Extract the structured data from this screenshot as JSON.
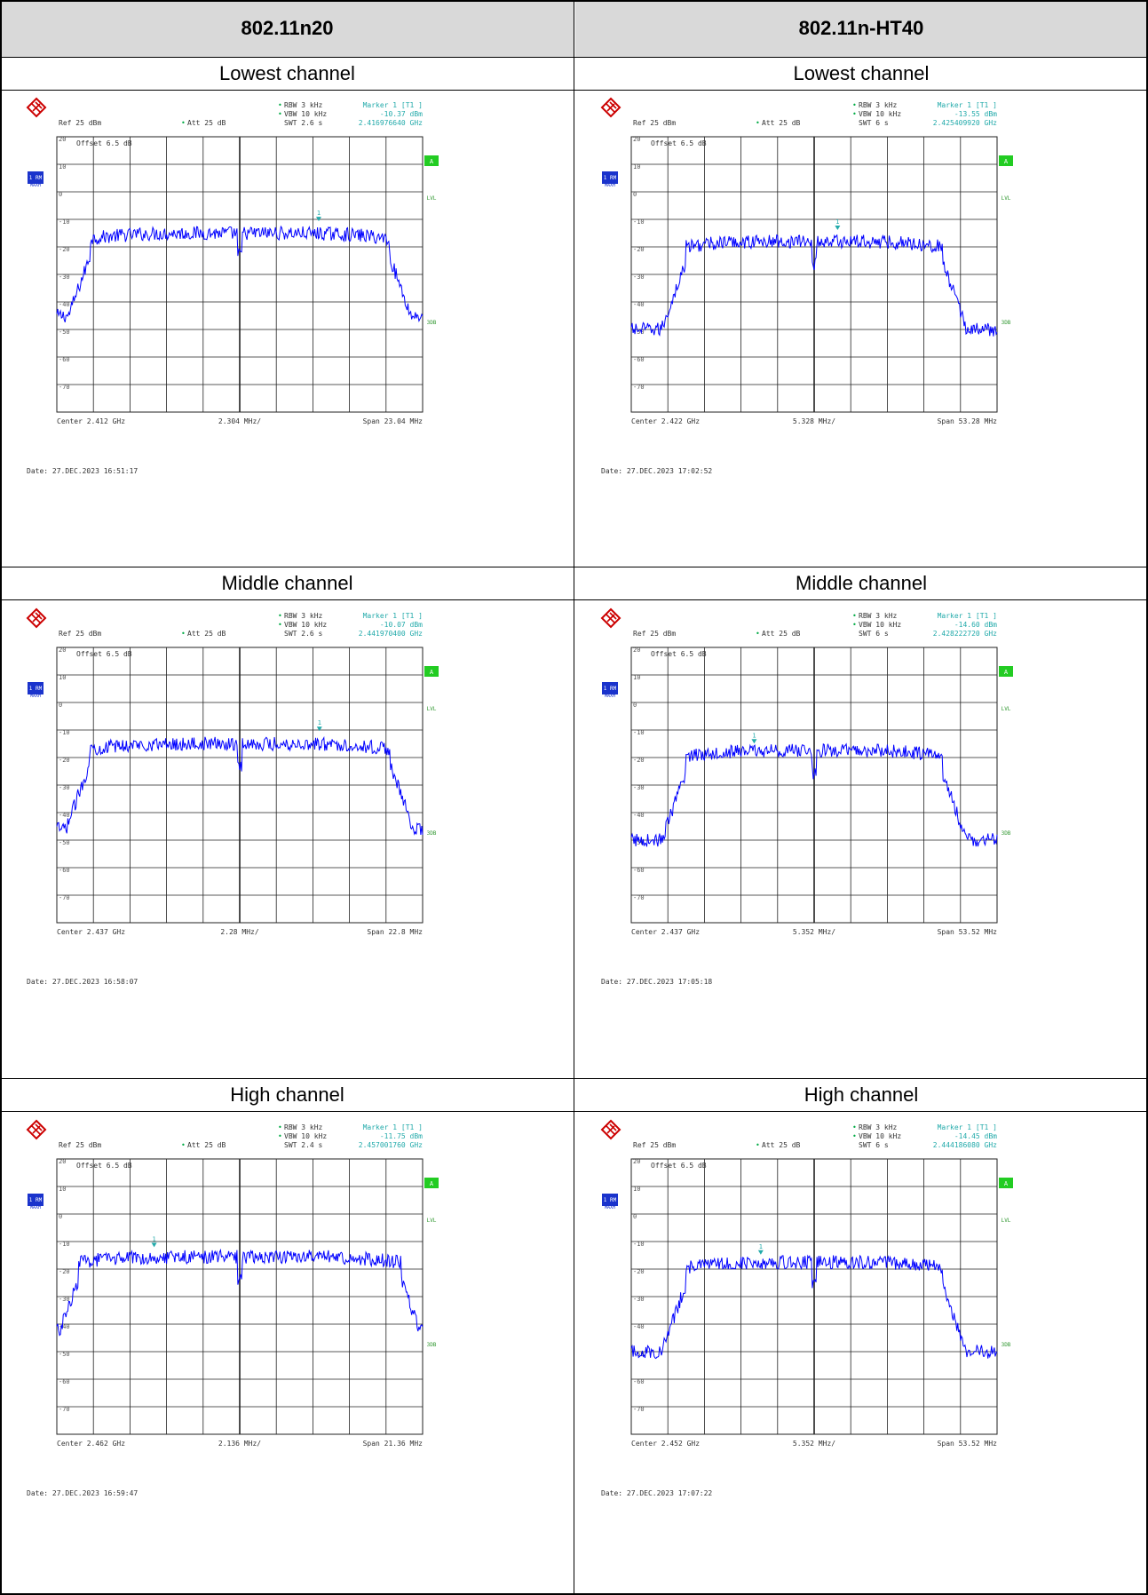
{
  "columns": [
    {
      "title": "802.11n20"
    },
    {
      "title": "802.11n-HT40"
    }
  ],
  "rows": [
    {
      "label": "Lowest channel"
    },
    {
      "label": "Middle channel"
    },
    {
      "label": "High channel"
    }
  ],
  "common": {
    "rbw": "RBW 3 kHz",
    "vbw": "VBW 10 kHz",
    "ref": "Ref  25 dBm",
    "att": "Att  25 dB",
    "offset": "Offset  6.5 dB",
    "side_1": "1 RM",
    "side_1b": "MAXH",
    "side_a": "A",
    "side_lvl": "LVL",
    "side_3db": "3DB",
    "marker_title": "Marker 1 [T1 ]",
    "y_ticks": [
      "20",
      "10",
      "0",
      "-10",
      "-20",
      "-30",
      "-40",
      "-50",
      "-60",
      "-70"
    ]
  },
  "chart_data": [
    {
      "type": "line",
      "panel": "802.11n20 Lowest channel",
      "swt": "SWT 2.6 s",
      "marker_level": "-10.37 dBm",
      "marker_freq": "2.416976640 GHz",
      "center": "Center  2.412 GHz",
      "per_div": "2.304 MHz/",
      "span": "Span  23.04 MHz",
      "date": "Date: 27.DEC.2023  16:51:17",
      "center_mhz": 2412,
      "span_mhz": 23.04,
      "occupied_mhz": 18.8,
      "plateau_dbm": -15,
      "floor_dbm": -45,
      "marker_x_mhz": 2416.97664,
      "marker_y_dbm": -10.37,
      "ylim": [
        -80,
        20
      ],
      "color": "#0000ff"
    },
    {
      "type": "line",
      "panel": "802.11n-HT40 Lowest channel",
      "swt": "SWT 6 s",
      "marker_level": "-13.55 dBm",
      "marker_freq": "2.425409920 GHz",
      "center": "Center  2.422 GHz",
      "per_div": "5.328 MHz/",
      "span": "Span  53.28 MHz",
      "date": "Date: 27.DEC.2023  17:02:52",
      "center_mhz": 2422,
      "span_mhz": 53.28,
      "occupied_mhz": 37.5,
      "plateau_dbm": -18,
      "floor_dbm": -50,
      "marker_x_mhz": 2425.40992,
      "marker_y_dbm": -13.55,
      "ylim": [
        -80,
        20
      ],
      "color": "#0000ff"
    },
    {
      "type": "line",
      "panel": "802.11n20 Middle channel",
      "swt": "SWT 2.6 s",
      "marker_level": "-10.07 dBm",
      "marker_freq": "2.441970400 GHz",
      "center": "Center  2.437 GHz",
      "per_div": "2.28 MHz/",
      "span": "Span  22.8 MHz",
      "date": "Date: 27.DEC.2023  16:58:07",
      "center_mhz": 2437,
      "span_mhz": 22.8,
      "occupied_mhz": 18.8,
      "plateau_dbm": -15,
      "floor_dbm": -46,
      "marker_x_mhz": 2441.9704,
      "marker_y_dbm": -10.07,
      "ylim": [
        -80,
        20
      ],
      "color": "#0000ff"
    },
    {
      "type": "line",
      "panel": "802.11n-HT40 Middle channel",
      "swt": "SWT 6 s",
      "marker_level": "-14.60 dBm",
      "marker_freq": "2.428222720 GHz",
      "center": "Center  2.437 GHz",
      "per_div": "5.352 MHz/",
      "span": "Span  53.52 MHz",
      "date": "Date: 27.DEC.2023  17:05:18",
      "center_mhz": 2437,
      "span_mhz": 53.52,
      "occupied_mhz": 37.5,
      "plateau_dbm": -17.5,
      "floor_dbm": -50,
      "marker_x_mhz": 2428.22272,
      "marker_y_dbm": -14.6,
      "ylim": [
        -80,
        20
      ],
      "color": "#0000ff"
    },
    {
      "type": "line",
      "panel": "802.11n20 High channel",
      "swt": "SWT 2.4 s",
      "marker_level": "-11.75 dBm",
      "marker_freq": "2.457001760 GHz",
      "center": "Center  2.462 GHz",
      "per_div": "2.136 MHz/",
      "span": "Span  21.36 MHz",
      "date": "Date: 27.DEC.2023  16:59:47",
      "center_mhz": 2462,
      "span_mhz": 21.36,
      "occupied_mhz": 18.8,
      "plateau_dbm": -15.5,
      "floor_dbm": -42,
      "marker_x_mhz": 2457.00176,
      "marker_y_dbm": -11.75,
      "ylim": [
        -80,
        20
      ],
      "color": "#0000ff"
    },
    {
      "type": "line",
      "panel": "802.11n-HT40 High channel",
      "swt": "SWT 6 s",
      "marker_level": "-14.45 dBm",
      "marker_freq": "2.444186080 GHz",
      "center": "Center  2.452 GHz",
      "per_div": "5.352 MHz/",
      "span": "Span  53.52 MHz",
      "date": "Date: 27.DEC.2023  17:07:22",
      "center_mhz": 2452,
      "span_mhz": 53.52,
      "occupied_mhz": 37.5,
      "plateau_dbm": -17.5,
      "floor_dbm": -50,
      "marker_x_mhz": 2444.18608,
      "marker_y_dbm": -14.45,
      "ylim": [
        -80,
        20
      ],
      "color": "#0000ff"
    }
  ]
}
